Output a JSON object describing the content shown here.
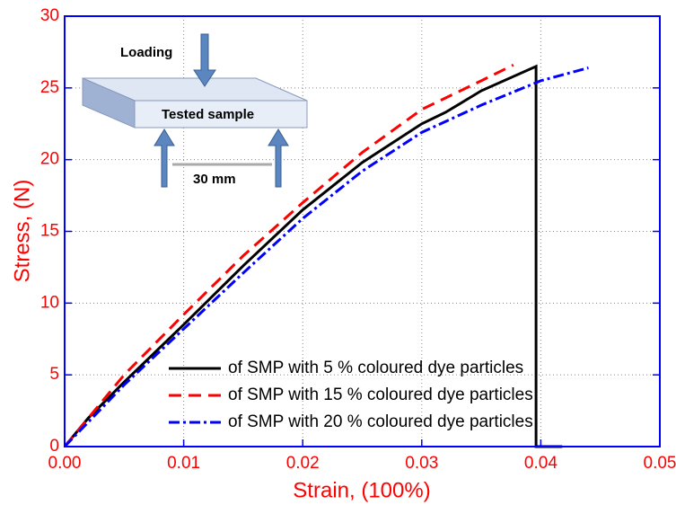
{
  "chart_data": {
    "type": "line",
    "xlabel": "Strain, (100%)",
    "ylabel": "Stress, (N)",
    "xlim": [
      0,
      0.05
    ],
    "ylim": [
      0,
      30
    ],
    "xticks": [
      {
        "value": 0,
        "label": "0.00"
      },
      {
        "value": 0.01,
        "label": "0.01"
      },
      {
        "value": 0.02,
        "label": "0.02"
      },
      {
        "value": 0.03,
        "label": "0.03"
      },
      {
        "value": 0.04,
        "label": "0.04"
      },
      {
        "value": 0.05,
        "label": "0.05"
      }
    ],
    "yticks": [
      0,
      5,
      10,
      15,
      20,
      25,
      30
    ],
    "grid": true,
    "legend": "lower right",
    "annotations": [
      "Loading",
      "Tested sample",
      "30 mm"
    ],
    "series": [
      {
        "name": "of SMP with 5 % coloured dye particles",
        "color": "#000000",
        "linestyle": "solid",
        "x": [
          0,
          0.002,
          0.005,
          0.01,
          0.015,
          0.02,
          0.025,
          0.03,
          0.032,
          0.035,
          0.0396,
          0.0396,
          0.0418
        ],
        "values": [
          0,
          2,
          4.5,
          8.5,
          12.6,
          16.5,
          19.8,
          22.5,
          23.3,
          24.8,
          26.5,
          0,
          0
        ]
      },
      {
        "name": "of SMP with 15 % coloured dye particles",
        "color": "#ff0000",
        "linestyle": "dashed",
        "x": [
          0,
          0.005,
          0.01,
          0.015,
          0.02,
          0.025,
          0.03,
          0.035,
          0.0377
        ],
        "values": [
          0,
          5,
          9.2,
          13.3,
          17,
          20.5,
          23.5,
          25.5,
          26.6
        ]
      },
      {
        "name": "of SMP with 20 % coloured dye particles",
        "color": "#0000ff",
        "linestyle": "dashdot",
        "x": [
          0,
          0.005,
          0.01,
          0.015,
          0.02,
          0.025,
          0.03,
          0.035,
          0.04,
          0.044
        ],
        "values": [
          0,
          4.3,
          8.2,
          12.1,
          15.9,
          19.2,
          21.9,
          23.8,
          25.5,
          26.4
        ]
      }
    ]
  }
}
